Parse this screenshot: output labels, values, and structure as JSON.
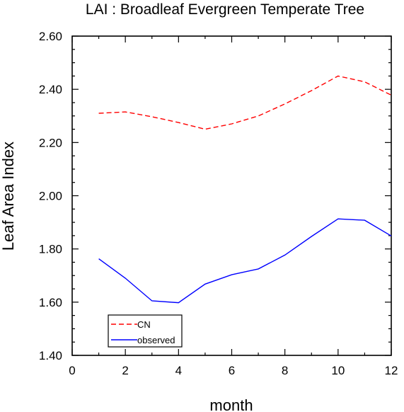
{
  "chart_data": {
    "type": "line",
    "title": "LAI : Broadleaf Evergreen Temperate Tree",
    "xlabel": "month",
    "ylabel": "Leaf Area Index",
    "xlim": [
      0,
      12
    ],
    "ylim": [
      1.4,
      2.6
    ],
    "x_ticks": [
      0,
      2,
      4,
      6,
      8,
      10,
      12
    ],
    "x_tick_labels": [
      "0",
      "2",
      "4",
      "6",
      "8",
      "10",
      "12"
    ],
    "y_ticks": [
      1.4,
      1.6,
      1.8,
      2.0,
      2.2,
      2.4,
      2.6
    ],
    "y_tick_labels": [
      "1.40",
      "1.60",
      "1.80",
      "2.00",
      "2.20",
      "2.40",
      "2.60"
    ],
    "grid": false,
    "legend_position": "bottom-left",
    "x": [
      1,
      2,
      3,
      4,
      5,
      6,
      7,
      8,
      9,
      10,
      11,
      12
    ],
    "series": [
      {
        "name": "CN",
        "color": "#ff0000",
        "dash": "dashed",
        "values": [
          2.31,
          2.315,
          2.297,
          2.275,
          2.25,
          2.27,
          2.3,
          2.345,
          2.395,
          2.45,
          2.428,
          2.378
        ]
      },
      {
        "name": "observed",
        "color": "#0000ff",
        "dash": "solid",
        "values": [
          1.763,
          1.69,
          1.605,
          1.598,
          1.668,
          1.703,
          1.725,
          1.777,
          1.847,
          1.913,
          1.908,
          1.849
        ]
      }
    ]
  }
}
